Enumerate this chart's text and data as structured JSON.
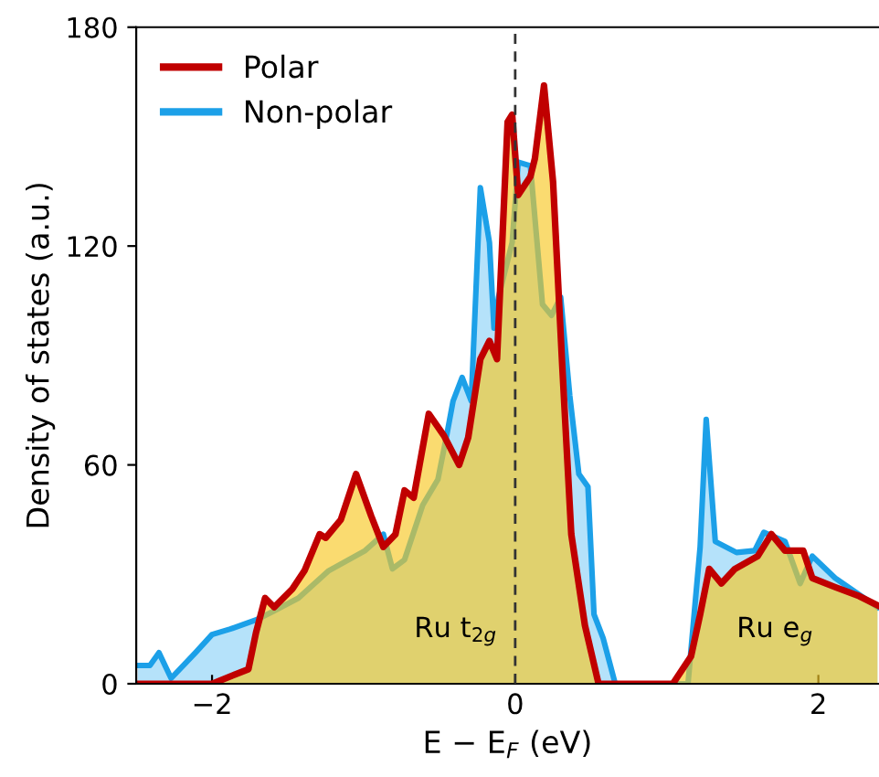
{
  "chart_data": {
    "type": "area",
    "xlabel": "E − E$_{F}$ (eV)",
    "ylabel": "Density of states (a.u.)",
    "xlim": [
      -2.5,
      2.4
    ],
    "xticks": [
      {
        "value": -2,
        "label": "−2"
      },
      0,
      2
    ],
    "ylim": [
      0,
      180
    ],
    "yticks": [
      0,
      60,
      120,
      180
    ],
    "legend": "top left",
    "grid": false,
    "series": [
      {
        "name": "Non-polar",
        "color": "#1ca0e8",
        "x": [
          -2.49,
          -2.41,
          -2.35,
          -2.27,
          -2.11,
          -2.0,
          -1.88,
          -1.71,
          -1.59,
          -1.43,
          -1.23,
          -0.99,
          -0.87,
          -0.81,
          -0.73,
          -0.61,
          -0.51,
          -0.45,
          -0.41,
          -0.35,
          -0.29,
          -0.23,
          -0.17,
          -0.14,
          -0.11,
          -0.02,
          0.02,
          0.1,
          0.18,
          0.24,
          0.3,
          0.36,
          0.42,
          0.48,
          0.52,
          0.58,
          0.66,
          1.14,
          1.22,
          1.26,
          1.32,
          1.46,
          1.58,
          1.64,
          1.78,
          1.88,
          1.96,
          2.11,
          2.39
        ],
        "values": [
          5,
          5,
          8.5,
          1.5,
          8.5,
          13.5,
          15,
          17.5,
          20,
          23.5,
          31,
          36.5,
          41,
          31.5,
          34,
          49,
          56,
          68.5,
          77.5,
          84,
          77.5,
          136,
          121,
          97.5,
          106,
          121,
          143,
          142,
          104,
          101,
          106,
          79,
          57.5,
          54,
          19,
          12.5,
          0,
          0,
          37.5,
          72.5,
          39,
          36,
          36.5,
          41.5,
          39,
          27.5,
          35,
          29,
          21
        ]
      },
      {
        "name": "Polar",
        "color": "#c00000",
        "x": [
          -2.49,
          -2.0,
          -1.76,
          -1.71,
          -1.65,
          -1.59,
          -1.47,
          -1.39,
          -1.29,
          -1.25,
          -1.15,
          -1.05,
          -0.95,
          -0.87,
          -0.79,
          -0.73,
          -0.67,
          -0.57,
          -0.47,
          -0.37,
          -0.31,
          -0.23,
          -0.17,
          -0.12,
          -0.05,
          -0.02,
          0.02,
          0.1,
          0.13,
          0.19,
          0.25,
          0.31,
          0.37,
          0.46,
          0.55,
          1.04,
          1.16,
          1.22,
          1.28,
          1.36,
          1.45,
          1.6,
          1.69,
          1.78,
          1.9,
          1.96,
          2.11,
          2.27,
          2.39
        ],
        "values": [
          0,
          0,
          4,
          14,
          23.5,
          21,
          26,
          31,
          41,
          40,
          45,
          57.5,
          46,
          37.5,
          41,
          53,
          51,
          74,
          68,
          60,
          67.5,
          89,
          94,
          89,
          154,
          156,
          134,
          139,
          144,
          164,
          137.5,
          87.5,
          41,
          16,
          0,
          0,
          7.5,
          19,
          31.5,
          27.5,
          31.5,
          35,
          41,
          36.5,
          36.5,
          29,
          26.5,
          24,
          21.5
        ]
      }
    ],
    "ref_lines": [
      {
        "axis": "x",
        "value": 0,
        "line_style": "dashed",
        "color": "#333333"
      }
    ],
    "annotations": [
      "Ru t$_{2g}$",
      "Ru e$_{g}$"
    ]
  }
}
